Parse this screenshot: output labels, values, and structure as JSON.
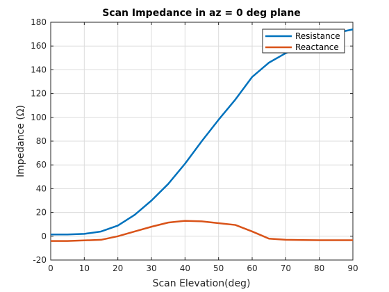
{
  "chart_data": {
    "type": "line",
    "title": "Scan Impedance in az = 0 deg plane",
    "xlabel": "Scan Elevation(deg)",
    "ylabel": "Impedance (Ω)",
    "xlim": [
      0,
      90
    ],
    "ylim": [
      -20,
      180
    ],
    "xticks": [
      0,
      10,
      20,
      30,
      40,
      50,
      60,
      70,
      80,
      90
    ],
    "yticks": [
      -20,
      0,
      20,
      40,
      60,
      80,
      100,
      120,
      140,
      160,
      180
    ],
    "grid": true,
    "legend_position": "top-right",
    "x": [
      0,
      5,
      10,
      15,
      20,
      25,
      30,
      35,
      40,
      45,
      50,
      55,
      60,
      65,
      70,
      75,
      80,
      85,
      90
    ],
    "series": [
      {
        "name": "Resistance",
        "color": "#0072BD",
        "values": [
          1.5,
          1.5,
          2,
          4,
          9,
          18,
          30,
          44,
          61,
          80,
          98,
          115,
          134,
          146,
          154,
          160,
          166,
          171,
          174
        ]
      },
      {
        "name": "Reactance",
        "color": "#D95319",
        "values": [
          -4,
          -4,
          -3.5,
          -3,
          0,
          4,
          8,
          11.5,
          13,
          12.5,
          11,
          9.5,
          4,
          -2,
          -3,
          -3.2,
          -3.3,
          -3.3,
          -3.3
        ]
      }
    ]
  }
}
